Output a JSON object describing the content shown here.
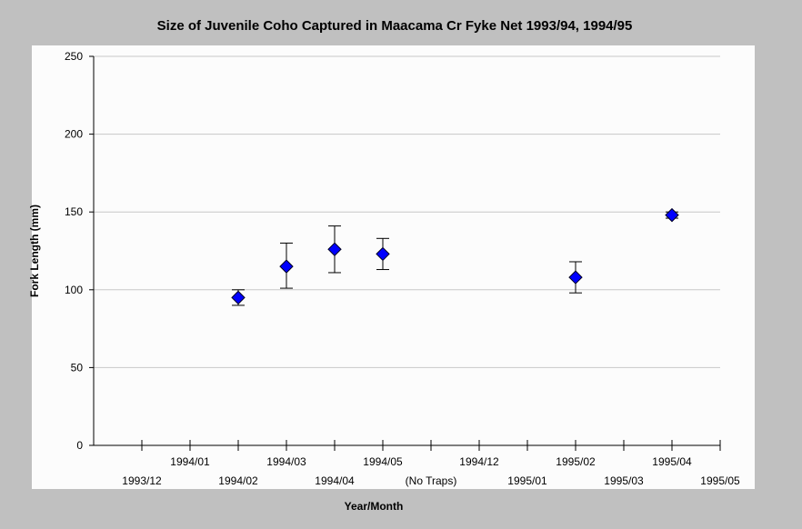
{
  "chart_data": {
    "type": "scatter",
    "title": "Size of Juvenile Coho Captured in Maacama Cr Fyke Net 1993/94, 1994/95",
    "xlabel": "Year/Month",
    "ylabel": "Fork Length (mm)",
    "ylim": [
      0,
      250
    ],
    "yticks": [
      0,
      50,
      100,
      150,
      200,
      250
    ],
    "grid": true,
    "legend": "none",
    "categories": [
      "1993/12",
      "1994/01",
      "1994/02",
      "1994/03",
      "1994/04",
      "1994/05",
      "(No Traps)",
      "1994/12",
      "1995/01",
      "1995/02",
      "1995/03",
      "1995/04",
      "1995/05"
    ],
    "series": [
      {
        "color": "#0000ff",
        "marker": "diamond",
        "points": [
          {
            "category": "1994/02",
            "y": 95,
            "low": 90,
            "high": 100
          },
          {
            "category": "1994/03",
            "y": 115,
            "low": 101,
            "high": 130
          },
          {
            "category": "1994/04",
            "y": 126,
            "low": 111,
            "high": 141
          },
          {
            "category": "1994/05",
            "y": 123,
            "low": 113,
            "high": 133
          },
          {
            "category": "1995/02",
            "y": 108,
            "low": 98,
            "high": 118
          },
          {
            "category": "1995/04",
            "y": 148,
            "low": 146,
            "high": 150
          }
        ]
      }
    ]
  }
}
